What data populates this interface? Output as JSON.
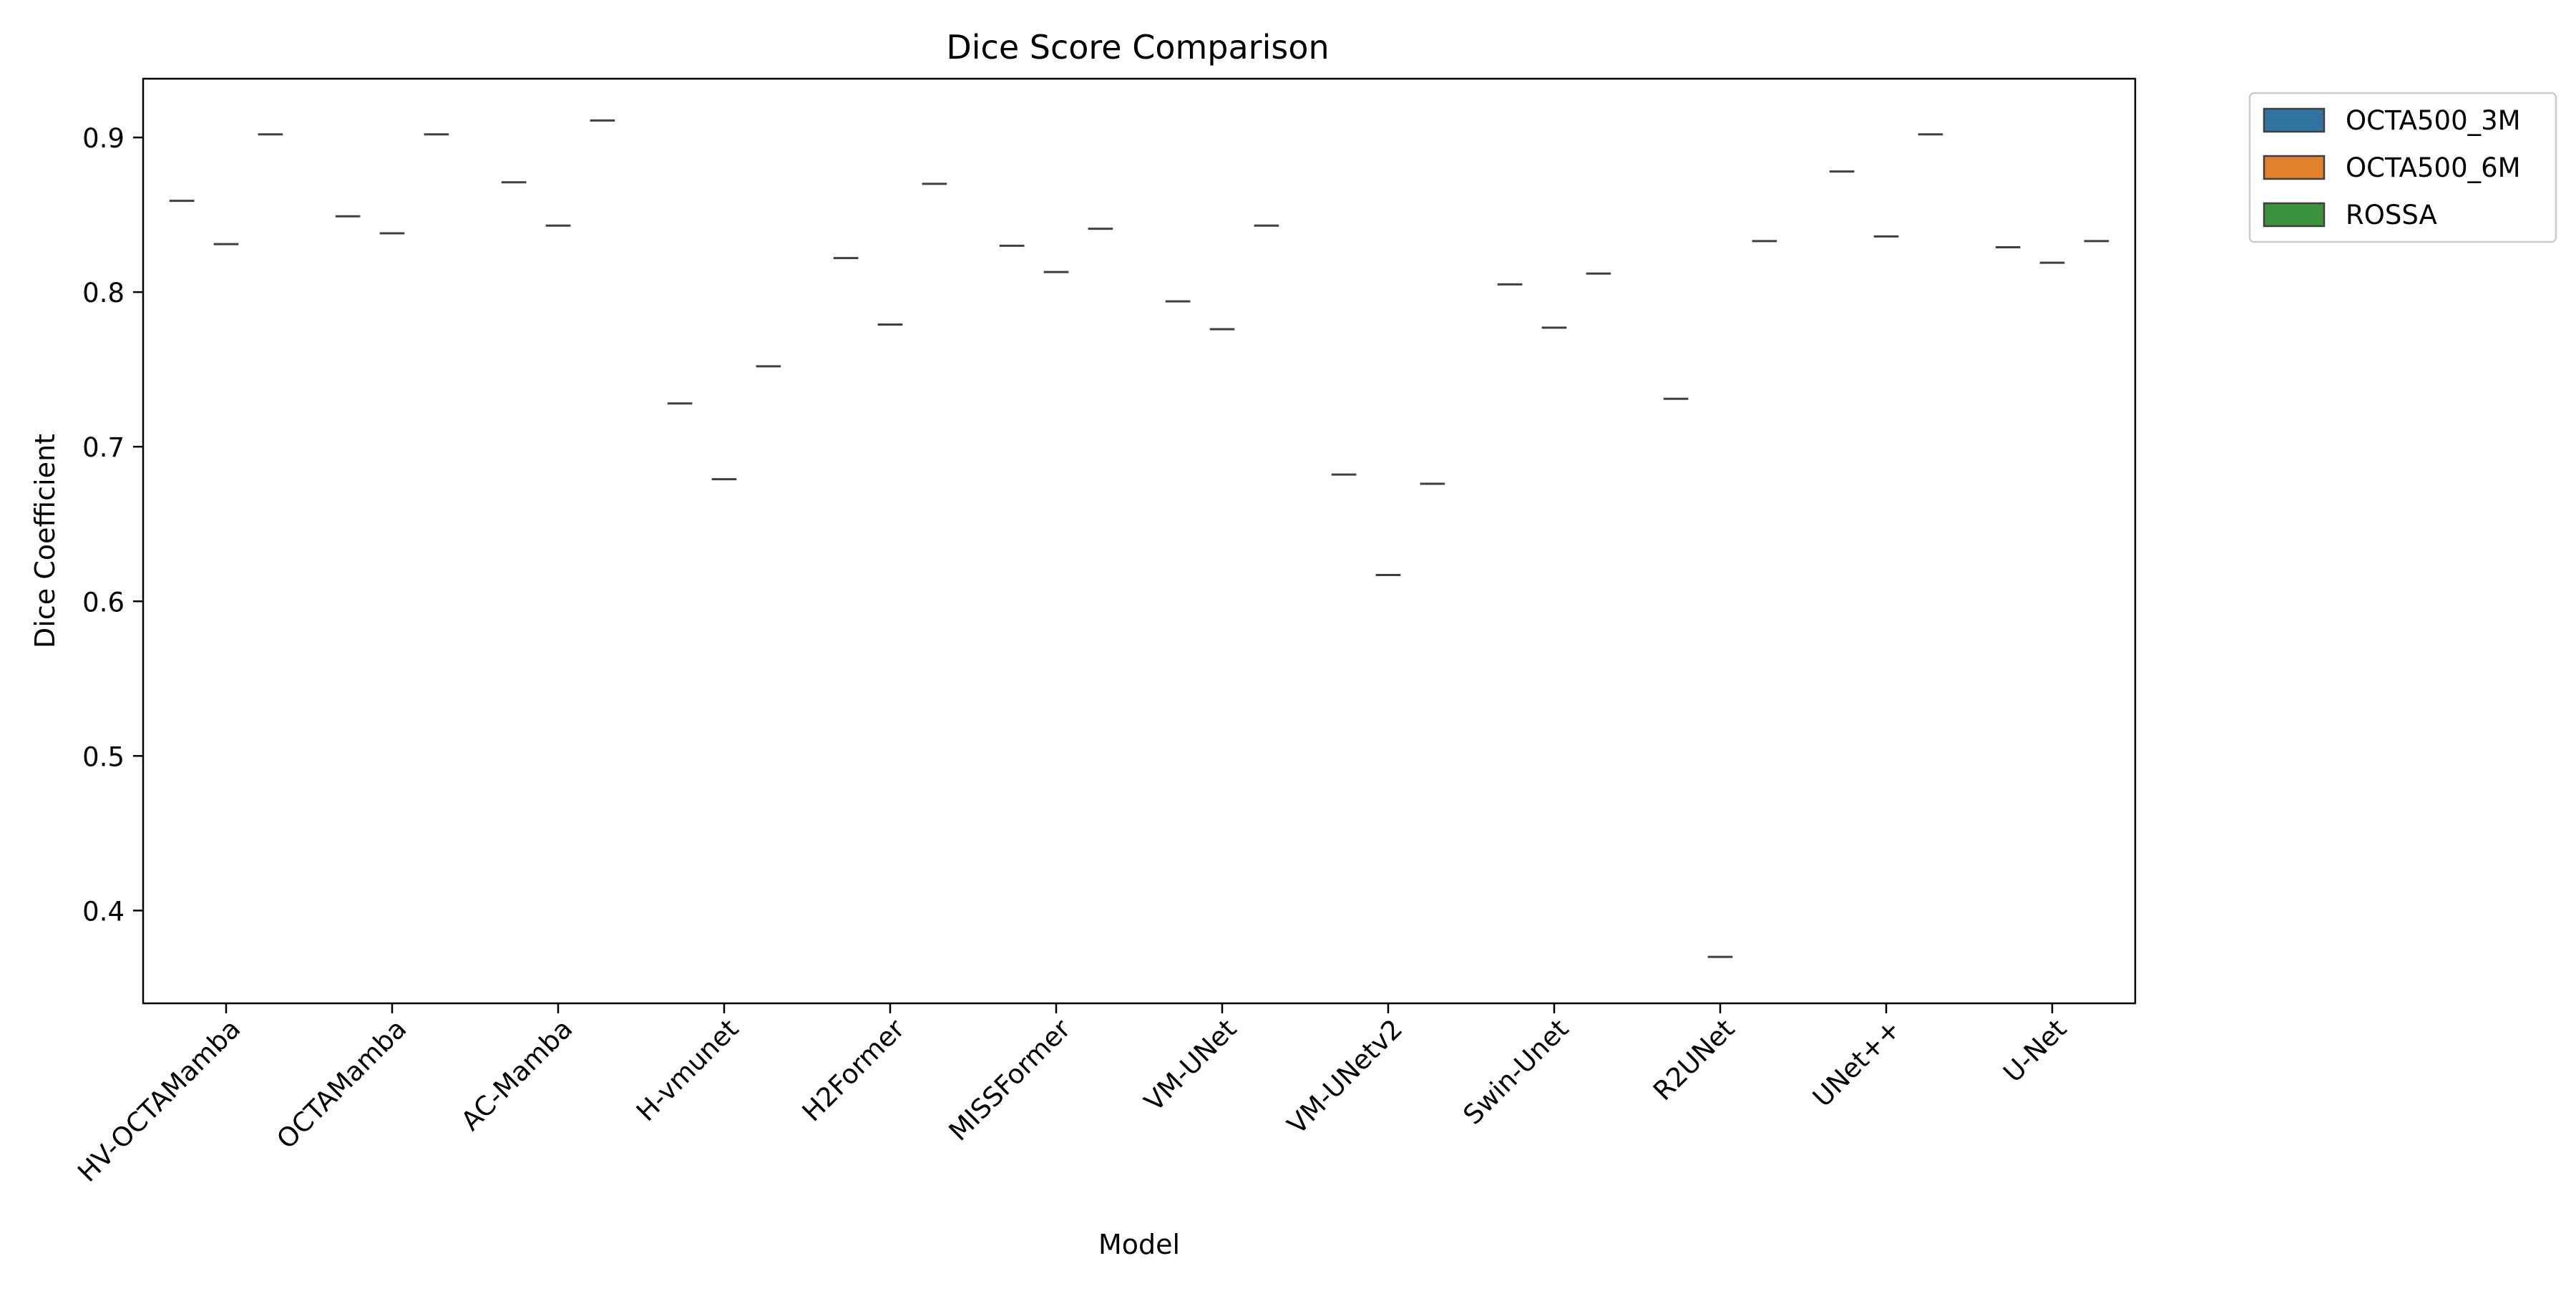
{
  "chart_data": {
    "type": "box",
    "title": "Dice Score Comparison",
    "xlabel": "Model",
    "ylabel": "Dice Coefficient",
    "ylim": [
      0.34,
      0.938
    ],
    "yticks": [
      0.4,
      0.5,
      0.6,
      0.7,
      0.8,
      0.9
    ],
    "ytick_labels": [
      "0.4",
      "0.5",
      "0.6",
      "0.7",
      "0.8",
      "0.9"
    ],
    "categories": [
      "HV-OCTAMamba",
      "OCTAMamba",
      "AC-Mamba",
      "H-vmunet",
      "H2Former",
      "MISSFormer",
      "VM-UNet",
      "VM-UNetv2",
      "Swin-Unet",
      "R2UNet",
      "UNet++",
      "U-Net"
    ],
    "series": [
      {
        "name": "OCTA500_3M",
        "color": "#3274a1",
        "values": [
          0.859,
          0.849,
          0.871,
          0.728,
          0.822,
          0.83,
          0.794,
          0.682,
          0.805,
          0.731,
          0.878,
          0.829
        ]
      },
      {
        "name": "OCTA500_6M",
        "color": "#e1812c",
        "values": [
          0.831,
          0.838,
          0.843,
          0.679,
          0.779,
          0.813,
          0.776,
          0.617,
          0.777,
          0.37,
          0.836,
          0.819
        ]
      },
      {
        "name": "ROSSA",
        "color": "#3a923a",
        "values": [
          0.902,
          0.902,
          0.911,
          0.752,
          0.87,
          0.841,
          0.843,
          0.676,
          0.812,
          0.833,
          0.902,
          0.833
        ]
      }
    ],
    "grid": false,
    "legend_position": "outside-top-right"
  }
}
